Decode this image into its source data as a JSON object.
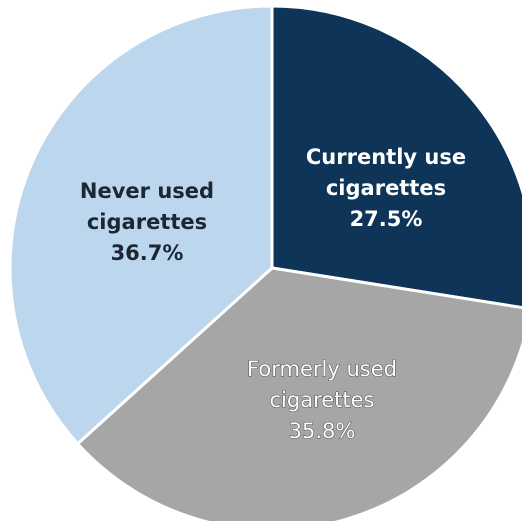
{
  "chart_data": {
    "type": "pie",
    "slices": [
      {
        "label_lines": [
          "Currently use",
          "cigarettes"
        ],
        "value": 27.5,
        "value_label": "27.5%",
        "color": "#0e3558",
        "text_color": "#ffffff",
        "text_style": "light"
      },
      {
        "label_lines": [
          "Formerly used",
          "cigarettes"
        ],
        "value": 35.8,
        "value_label": "35.8%",
        "color": "#a6a6a6",
        "text_color": "#ffffff",
        "text_style": "outlined"
      },
      {
        "label_lines": [
          "Never used",
          "cigarettes"
        ],
        "value": 36.7,
        "value_label": "36.7%",
        "color": "#bcd6ee",
        "text_color": "#1c2634",
        "text_style": "dark"
      }
    ],
    "start_angle": "12 o'clock",
    "direction": "clockwise",
    "slice_border_color": "#ffffff"
  }
}
